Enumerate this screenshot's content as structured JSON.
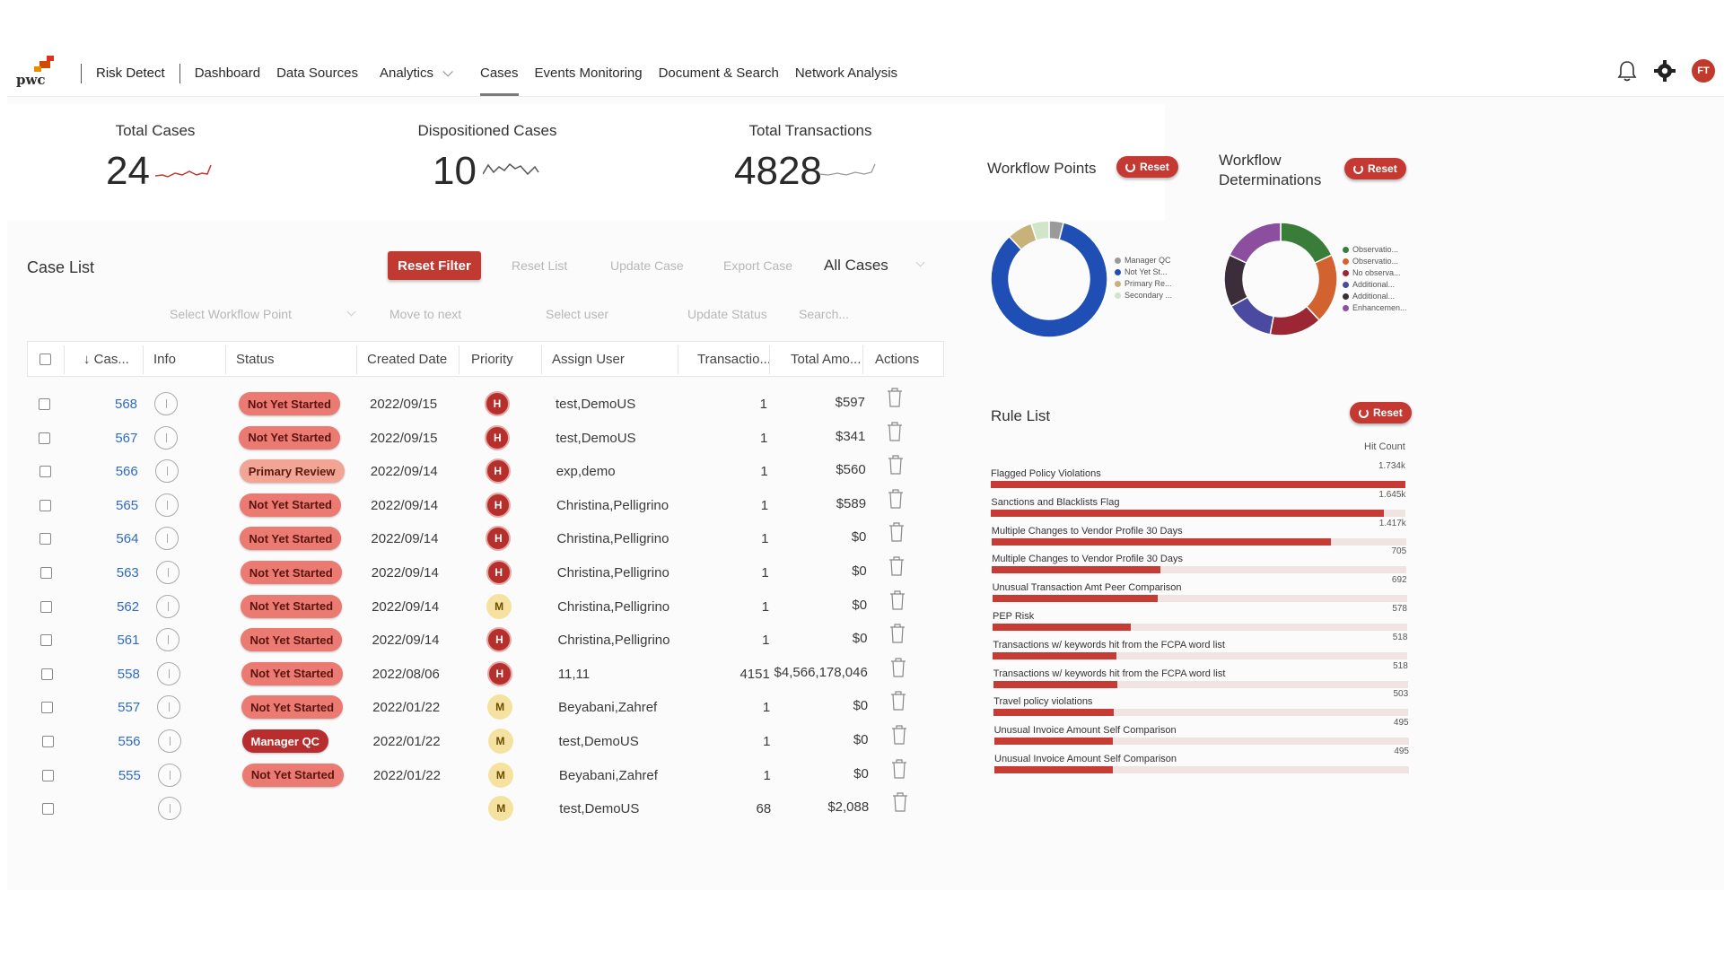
{
  "nav": {
    "logo_text": "pwc",
    "app_title": "Risk Detect",
    "links": [
      {
        "label": "Dashboard",
        "active": false
      },
      {
        "label": "Data Sources",
        "active": false
      },
      {
        "label": "Analytics",
        "active": false,
        "dropdown": true
      },
      {
        "label": "Cases",
        "active": true
      },
      {
        "label": "Events Monitoring",
        "active": false
      },
      {
        "label": "Document & Search",
        "active": false
      },
      {
        "label": "Network Analysis",
        "active": false
      }
    ],
    "avatar_initials": "FT",
    "icons": [
      "bell-icon",
      "gear-icon",
      "avatar"
    ]
  },
  "kpis": [
    {
      "label": "Total Cases",
      "value": "24"
    },
    {
      "label": "Dispositioned Cases",
      "value": "10"
    },
    {
      "label": "Total Transactions",
      "value": "4828"
    }
  ],
  "case_list": {
    "title": "Case List",
    "reset_filter": "Reset Filter",
    "reset_list": "Reset List",
    "update_case": "Update Case",
    "export_case": "Export Case",
    "scope_select": "All Cases",
    "workflow_placeholder": "Select Workflow Point",
    "move_to_next": "Move to next",
    "select_user": "Select user",
    "update_status": "Update Status",
    "search_placeholder": "Search..."
  },
  "table": {
    "columns": [
      "Cas...",
      "Info",
      "Status",
      "Created Date",
      "Priority",
      "Assign User",
      "Transactio...",
      "Total Amo...",
      "Actions"
    ],
    "rows": [
      {
        "id": "568",
        "status": "Not Yet Started",
        "kind": "ns",
        "date": "2022/09/15",
        "priority": "H",
        "user": "test,DemoUS",
        "tx": "1",
        "amount": "$597"
      },
      {
        "id": "567",
        "status": "Not Yet Started",
        "kind": "ns",
        "date": "2022/09/15",
        "priority": "H",
        "user": "test,DemoUS",
        "tx": "1",
        "amount": "$341"
      },
      {
        "id": "566",
        "status": "Primary Review",
        "kind": "pr",
        "date": "2022/09/14",
        "priority": "H",
        "user": "exp,demo",
        "tx": "1",
        "amount": "$560"
      },
      {
        "id": "565",
        "status": "Not Yet Started",
        "kind": "ns",
        "date": "2022/09/14",
        "priority": "H",
        "user": "Christina,Pelligrino",
        "tx": "1",
        "amount": "$589"
      },
      {
        "id": "564",
        "status": "Not Yet Started",
        "kind": "ns",
        "date": "2022/09/14",
        "priority": "H",
        "user": "Christina,Pelligrino",
        "tx": "1",
        "amount": "$0"
      },
      {
        "id": "563",
        "status": "Not Yet Started",
        "kind": "ns",
        "date": "2022/09/14",
        "priority": "H",
        "user": "Christina,Pelligrino",
        "tx": "1",
        "amount": "$0"
      },
      {
        "id": "562",
        "status": "Not Yet Started",
        "kind": "ns",
        "date": "2022/09/14",
        "priority": "M",
        "user": "Christina,Pelligrino",
        "tx": "1",
        "amount": "$0"
      },
      {
        "id": "561",
        "status": "Not Yet Started",
        "kind": "ns",
        "date": "2022/09/14",
        "priority": "H",
        "user": "Christina,Pelligrino",
        "tx": "1",
        "amount": "$0"
      },
      {
        "id": "558",
        "status": "Not Yet Started",
        "kind": "ns",
        "date": "2022/08/06",
        "priority": "H",
        "user": "11,11",
        "tx": "4151",
        "amount": "$4,566,178,046"
      },
      {
        "id": "557",
        "status": "Not Yet Started",
        "kind": "ns",
        "date": "2022/01/22",
        "priority": "M",
        "user": "Beyabani,Zahref",
        "tx": "1",
        "amount": "$0"
      },
      {
        "id": "556",
        "status": "Manager QC",
        "kind": "mq",
        "date": "2022/01/22",
        "priority": "M",
        "user": "test,DemoUS",
        "tx": "1",
        "amount": "$0"
      },
      {
        "id": "555",
        "status": "Not Yet Started",
        "kind": "ns",
        "date": "2022/01/22",
        "priority": "M",
        "user": "Beyabani,Zahref",
        "tx": "1",
        "amount": "$0"
      },
      {
        "id": "",
        "status": "",
        "kind": "ns",
        "date": "",
        "priority": "M",
        "user": "test,DemoUS",
        "tx": "68",
        "amount": "$2,088"
      }
    ]
  },
  "workflow_points": {
    "title": "Workflow Points",
    "reset": "Reset",
    "legend": [
      "Manager QC",
      "Not Yet St...",
      "Primary Re...",
      "Secondary ..."
    ],
    "colors": [
      "#9a9a9a",
      "#1f4fb4",
      "#c7b27c",
      "#cfe6c9"
    ],
    "slices": [
      0.04,
      0.84,
      0.07,
      0.05
    ]
  },
  "workflow_determinations": {
    "title_line1": "Workflow",
    "title_line2": "Determinations",
    "reset": "Reset",
    "legend": [
      "Observatio...",
      "Observatio...",
      "No observa...",
      "Additional...",
      "Additional...",
      "Enhancemen..."
    ],
    "colors": [
      "#3a7d3a",
      "#d2622f",
      "#9a2733",
      "#4a4aa0",
      "#3b2d3a",
      "#8c4fa0"
    ],
    "slices": [
      0.18,
      0.2,
      0.15,
      0.14,
      0.15,
      0.18
    ]
  },
  "rule_list": {
    "title": "Rule List",
    "reset": "Reset",
    "hit_count_label": "Hit Count",
    "rules": [
      {
        "label": "Flagged Policy Violations",
        "count": "1.734k",
        "value": 1734
      },
      {
        "label": "Sanctions and Blacklists Flag",
        "count": "1.645k",
        "value": 1645
      },
      {
        "label": "Multiple Changes to Vendor Profile 30 Days",
        "count": "1.417k",
        "value": 1417
      },
      {
        "label": "Multiple Changes to Vendor Profile 30 Days",
        "count": "705",
        "value": 705
      },
      {
        "label": "Unusual Transaction Amt Peer Comparison",
        "count": "692",
        "value": 692
      },
      {
        "label": "PEP Risk",
        "count": "578",
        "value": 578
      },
      {
        "label": "Transactions w/ keywords hit from the FCPA word list",
        "count": "518",
        "value": 518
      },
      {
        "label": "Transactions w/ keywords hit from the FCPA word list",
        "count": "518",
        "value": 518
      },
      {
        "label": "Travel policy violations",
        "count": "503",
        "value": 503
      },
      {
        "label": "Unusual Invoice Amount Self Comparison",
        "count": "495",
        "value": 495
      },
      {
        "label": "Unusual Invoice Amount Self Comparison",
        "count": "495",
        "value": 495
      }
    ]
  }
}
